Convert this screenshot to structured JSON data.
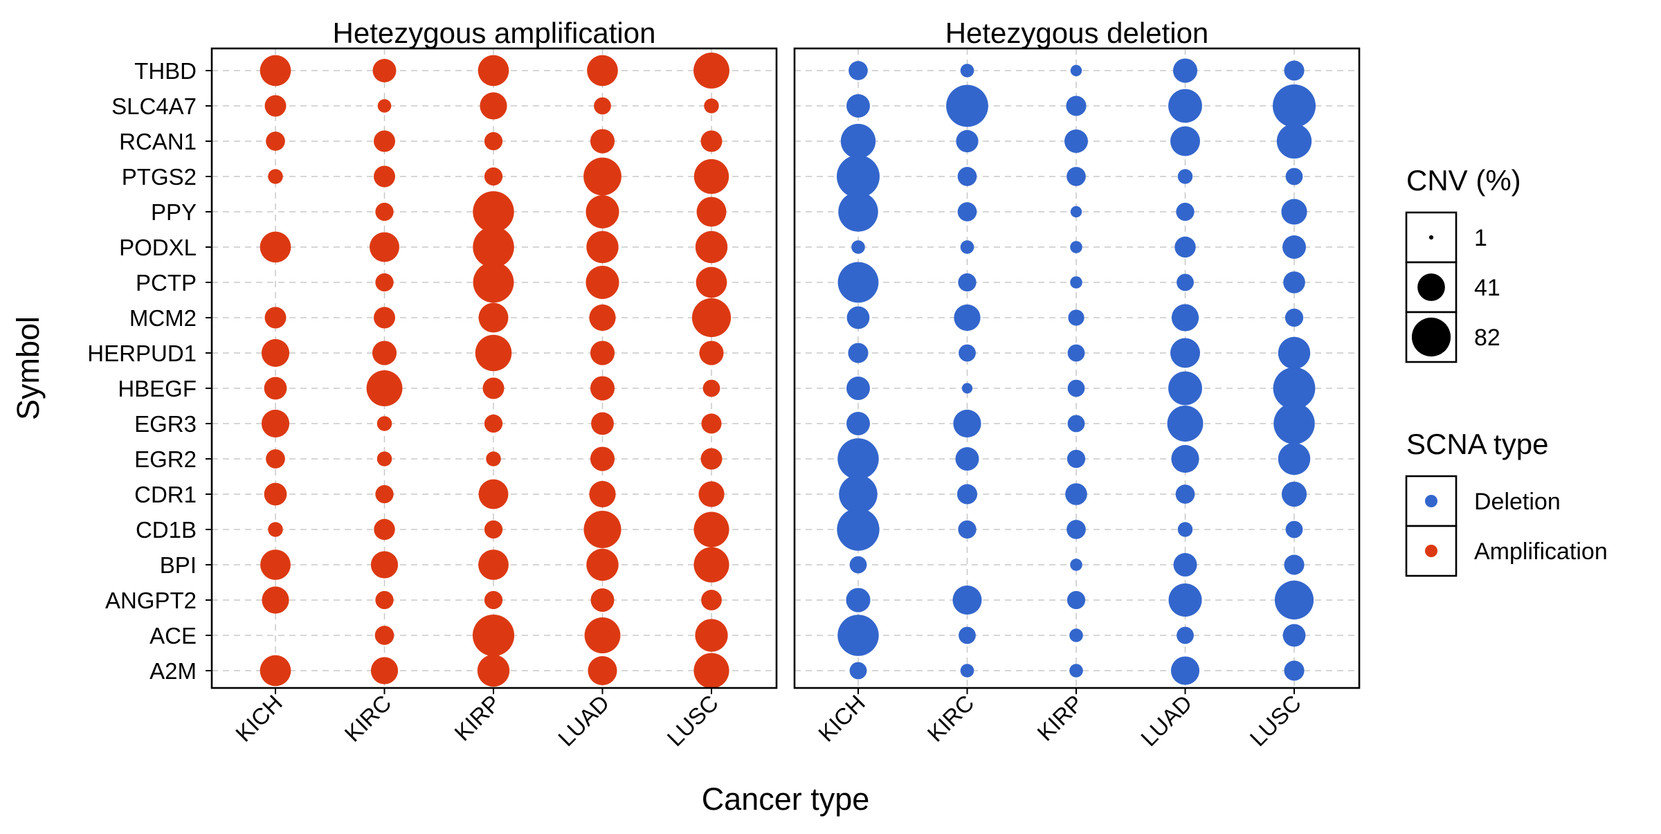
{
  "chart_data": {
    "type": "scatter",
    "panels": [
      {
        "title": "Hetezygous amplification",
        "scna_type": "Amplification",
        "values": [
          [
            52,
            30,
            52,
            52,
            70
          ],
          [
            25,
            10,
            40,
            16,
            12
          ],
          [
            20,
            25,
            18,
            32,
            25
          ],
          [
            12,
            25,
            18,
            78,
            66
          ],
          [
            0,
            18,
            92,
            60,
            48
          ],
          [
            52,
            48,
            92,
            56,
            56
          ],
          [
            0,
            18,
            90,
            60,
            52
          ],
          [
            25,
            25,
            48,
            38,
            82
          ],
          [
            42,
            32,
            72,
            32,
            32
          ],
          [
            28,
            70,
            25,
            32,
            16
          ],
          [
            42,
            12,
            18,
            28,
            22
          ],
          [
            20,
            12,
            12,
            32,
            25
          ],
          [
            28,
            18,
            48,
            38,
            36
          ],
          [
            12,
            24,
            18,
            76,
            68
          ],
          [
            50,
            40,
            50,
            56,
            68
          ],
          [
            40,
            18,
            18,
            30,
            23
          ],
          [
            0,
            20,
            94,
            70,
            58
          ],
          [
            52,
            40,
            56,
            46,
            68
          ]
        ]
      },
      {
        "title": "Hetezygous deletion",
        "scna_type": "Deletion",
        "values": [
          [
            20,
            10,
            7,
            32,
            22
          ],
          [
            30,
            96,
            22,
            62,
            100
          ],
          [
            66,
            27,
            30,
            48,
            66
          ],
          [
            100,
            20,
            20,
            12,
            16
          ],
          [
            86,
            20,
            7,
            18,
            36
          ],
          [
            10,
            10,
            8,
            24,
            30
          ],
          [
            90,
            18,
            8,
            16,
            26
          ],
          [
            28,
            38,
            14,
            40,
            18
          ],
          [
            22,
            16,
            16,
            48,
            56
          ],
          [
            30,
            6,
            16,
            62,
            96
          ],
          [
            30,
            42,
            16,
            70,
            92
          ],
          [
            92,
            30,
            18,
            42,
            56
          ],
          [
            80,
            22,
            26,
            20,
            34
          ],
          [
            98,
            18,
            20,
            12,
            16
          ],
          [
            16,
            0,
            8,
            30,
            22
          ],
          [
            32,
            46,
            18,
            60,
            82
          ],
          [
            92,
            16,
            10,
            16,
            28
          ],
          [
            16,
            10,
            10,
            44,
            22
          ]
        ]
      }
    ],
    "categories": [
      "KICH",
      "KIRC",
      "KIRP",
      "LUAD",
      "LUSC"
    ],
    "symbols": [
      "THBD",
      "SLC4A7",
      "RCAN1",
      "PTGS2",
      "PPY",
      "PODXL",
      "PCTP",
      "MCM2",
      "HERPUD1",
      "HBEGF",
      "EGR3",
      "EGR2",
      "CDR1",
      "CD1B",
      "BPI",
      "ANGPT2",
      "ACE",
      "A2M"
    ],
    "xlabel": "Cancer type",
    "ylabel": "Symbol",
    "size_range": [
      0,
      100
    ],
    "legend": {
      "position": "right",
      "size": {
        "title": "CNV (%)",
        "entries": [
          {
            "label": "1",
            "value": 1
          },
          {
            "label": "41",
            "value": 41
          },
          {
            "label": "82",
            "value": 82
          }
        ]
      },
      "color": {
        "title": "SCNA type",
        "entries": [
          {
            "label": "Deletion",
            "color": "#3366cc"
          },
          {
            "label": "Amplification",
            "color": "#dc3912"
          }
        ]
      }
    },
    "colors": {
      "Amplification": "#dc3912",
      "Deletion": "#3366cc"
    },
    "grid": true
  }
}
